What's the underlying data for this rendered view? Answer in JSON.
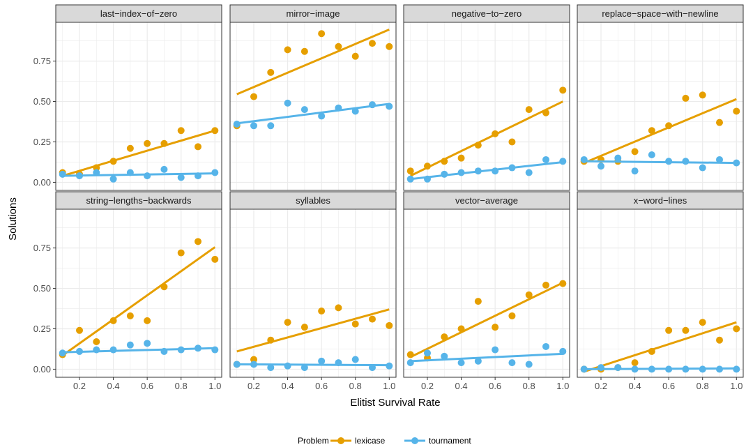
{
  "chart_data": {
    "type": "scatter",
    "xlabel": "Elitist Survival Rate",
    "ylabel": "Solutions",
    "xlim": [
      0.06,
      1.04
    ],
    "ylim": [
      -0.05,
      0.99
    ],
    "x_ticks": [
      "0.2",
      "0.4",
      "0.6",
      "0.8",
      "1.0"
    ],
    "y_ticks": [
      "0.00",
      "0.25",
      "0.50",
      "0.75"
    ],
    "grid": true,
    "legend_position": "bottom",
    "legend_title": "Problem",
    "series_names": [
      "lexicase",
      "tournament"
    ],
    "colors": {
      "lexicase": "#E69F00",
      "tournament": "#56B4E9"
    },
    "x": [
      0.1,
      0.2,
      0.3,
      0.4,
      0.5,
      0.6,
      0.7,
      0.8,
      0.9,
      1.0
    ],
    "facets": [
      {
        "title": "last−index−of−zero",
        "lexicase": [
          0.06,
          0.05,
          0.09,
          0.13,
          0.21,
          0.24,
          0.24,
          0.32,
          0.22,
          0.32
        ],
        "tournament": [
          0.05,
          0.04,
          0.06,
          0.02,
          0.06,
          0.04,
          0.08,
          0.03,
          0.04,
          0.06
        ],
        "lexicase_fit": [
          0.04,
          0.32
        ],
        "tournament_fit": [
          0.04,
          0.055
        ]
      },
      {
        "title": "mirror−image",
        "lexicase": [
          0.35,
          0.53,
          0.68,
          0.82,
          0.81,
          0.92,
          0.84,
          0.78,
          0.86,
          0.84
        ],
        "tournament": [
          0.36,
          0.35,
          0.35,
          0.49,
          0.45,
          0.41,
          0.46,
          0.44,
          0.48,
          0.47
        ],
        "lexicase_fit": [
          0.545,
          0.945
        ],
        "tournament_fit": [
          0.365,
          0.485
        ]
      },
      {
        "title": "negative−to−zero",
        "lexicase": [
          0.07,
          0.1,
          0.13,
          0.15,
          0.23,
          0.3,
          0.25,
          0.45,
          0.43,
          0.57
        ],
        "tournament": [
          0.02,
          0.02,
          0.05,
          0.06,
          0.07,
          0.07,
          0.09,
          0.06,
          0.14,
          0.13
        ],
        "lexicase_fit": [
          0.04,
          0.5
        ],
        "tournament_fit": [
          0.02,
          0.125
        ]
      },
      {
        "title": "replace−space−with−newline",
        "lexicase": [
          0.13,
          0.14,
          0.13,
          0.19,
          0.32,
          0.35,
          0.52,
          0.54,
          0.37,
          0.44
        ],
        "tournament": [
          0.14,
          0.1,
          0.15,
          0.07,
          0.17,
          0.13,
          0.13,
          0.09,
          0.14,
          0.12
        ],
        "lexicase_fit": [
          0.12,
          0.515
        ],
        "tournament_fit": [
          0.13,
          0.12
        ]
      },
      {
        "title": "string−lengths−backwards",
        "lexicase": [
          0.09,
          0.24,
          0.17,
          0.3,
          0.33,
          0.3,
          0.51,
          0.72,
          0.79,
          0.68
        ],
        "tournament": [
          0.1,
          0.11,
          0.12,
          0.12,
          0.15,
          0.16,
          0.11,
          0.12,
          0.13,
          0.12
        ],
        "lexicase_fit": [
          0.085,
          0.755
        ],
        "tournament_fit": [
          0.105,
          0.13
        ]
      },
      {
        "title": "syllables",
        "lexicase": [
          0.03,
          0.06,
          0.18,
          0.29,
          0.26,
          0.36,
          0.38,
          0.28,
          0.31,
          0.27
        ],
        "tournament": [
          0.03,
          0.03,
          0.01,
          0.02,
          0.01,
          0.05,
          0.04,
          0.06,
          0.01,
          0.02
        ],
        "lexicase_fit": [
          0.11,
          0.37
        ],
        "tournament_fit": [
          0.03,
          0.025
        ]
      },
      {
        "title": "vector−average",
        "lexicase": [
          0.09,
          0.07,
          0.2,
          0.25,
          0.42,
          0.26,
          0.33,
          0.46,
          0.52,
          0.53
        ],
        "tournament": [
          0.04,
          0.1,
          0.08,
          0.04,
          0.05,
          0.12,
          0.04,
          0.03,
          0.14,
          0.11
        ],
        "lexicase_fit": [
          0.075,
          0.535
        ],
        "tournament_fit": [
          0.05,
          0.095
        ]
      },
      {
        "title": "x−word−lines",
        "lexicase": [
          0.0,
          0.0,
          0.01,
          0.04,
          0.11,
          0.24,
          0.24,
          0.29,
          0.18,
          0.25
        ],
        "tournament": [
          0.0,
          0.01,
          0.01,
          0.0,
          0.0,
          0.0,
          0.0,
          0.0,
          0.0,
          0.0
        ],
        "lexicase_fit": [
          -0.015,
          0.29
        ],
        "tournament_fit": [
          0.0,
          0.005
        ]
      }
    ]
  }
}
